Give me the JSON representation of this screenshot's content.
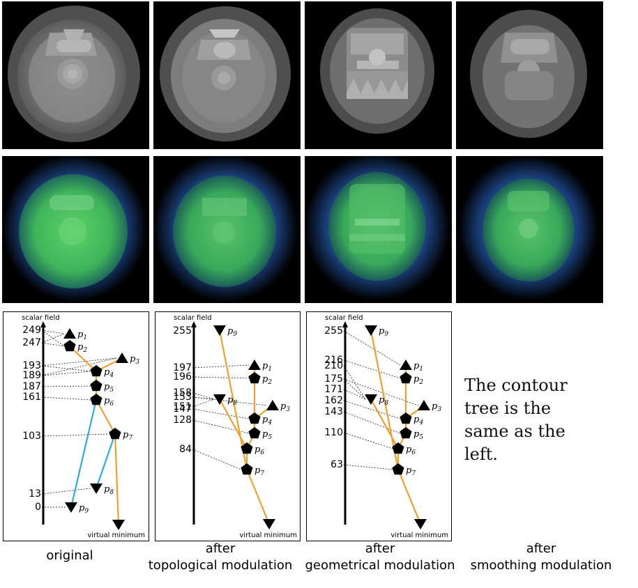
{
  "colors": {
    "orange": "#f0a02a",
    "blue": "#29aee0",
    "black": "#000000"
  },
  "columns": [
    {
      "caption": [
        "original"
      ],
      "tree": {
        "axis_label": "scalar field",
        "bottom_label": "virtual minimum",
        "ticks": [
          249,
          247,
          193,
          189,
          187,
          161,
          103,
          13,
          0
        ],
        "nodes": [
          {
            "id": "p1",
            "label": "p1",
            "shape": "max"
          },
          {
            "id": "p2",
            "label": "p2",
            "shape": "saddle"
          },
          {
            "id": "p3",
            "label": "p3",
            "shape": "max"
          },
          {
            "id": "p4",
            "label": "p4",
            "shape": "saddle"
          },
          {
            "id": "p5",
            "label": "p5",
            "shape": "saddle"
          },
          {
            "id": "p6",
            "label": "p6",
            "shape": "saddle"
          },
          {
            "id": "p7",
            "label": "p7",
            "shape": "saddle"
          },
          {
            "id": "p8",
            "label": "p8",
            "shape": "min"
          },
          {
            "id": "p9",
            "label": "p9",
            "shape": "min"
          },
          {
            "id": "vm",
            "label": "",
            "shape": "min"
          }
        ]
      }
    },
    {
      "caption": [
        "after",
        "topological modulation"
      ],
      "tree": {
        "axis_label": "scalar field",
        "bottom_label": "virtual minimum",
        "ticks": [
          255,
          197,
          196,
          158,
          153,
          151,
          147,
          128,
          84
        ],
        "nodes": [
          {
            "id": "p9",
            "label": "p9",
            "shape": "min"
          },
          {
            "id": "p1",
            "label": "p1",
            "shape": "max"
          },
          {
            "id": "p2",
            "label": "p2",
            "shape": "saddle"
          },
          {
            "id": "p8",
            "label": "p8",
            "shape": "min"
          },
          {
            "id": "p3",
            "label": "p3",
            "shape": "max"
          },
          {
            "id": "p4",
            "label": "p4",
            "shape": "saddle"
          },
          {
            "id": "p5",
            "label": "p5",
            "shape": "saddle"
          },
          {
            "id": "p6",
            "label": "p6",
            "shape": "saddle"
          },
          {
            "id": "p7",
            "label": "p7",
            "shape": "saddle"
          },
          {
            "id": "vm",
            "label": "",
            "shape": "min"
          }
        ]
      }
    },
    {
      "caption": [
        "after",
        "geometrical modulation"
      ],
      "tree": {
        "axis_label": "scalar field",
        "bottom_label": "virtual minimum",
        "ticks": [
          255,
          216,
          210,
          175,
          171,
          162,
          143,
          110,
          63
        ],
        "nodes": [
          {
            "id": "p9",
            "label": "p9",
            "shape": "min"
          },
          {
            "id": "p1",
            "label": "p1",
            "shape": "max"
          },
          {
            "id": "p2",
            "label": "p2",
            "shape": "saddle"
          },
          {
            "id": "p8",
            "label": "p8",
            "shape": "min"
          },
          {
            "id": "p3",
            "label": "p3",
            "shape": "max"
          },
          {
            "id": "p4",
            "label": "p4",
            "shape": "saddle"
          },
          {
            "id": "p5",
            "label": "p5",
            "shape": "saddle"
          },
          {
            "id": "p6",
            "label": "p6",
            "shape": "saddle"
          },
          {
            "id": "p7",
            "label": "p7",
            "shape": "saddle"
          },
          {
            "id": "vm",
            "label": "",
            "shape": "min"
          }
        ]
      }
    },
    {
      "caption": [
        "after",
        "smoothing modulation"
      ],
      "note": [
        "The contour",
        "tree is the",
        "same as the",
        "left."
      ]
    }
  ]
}
